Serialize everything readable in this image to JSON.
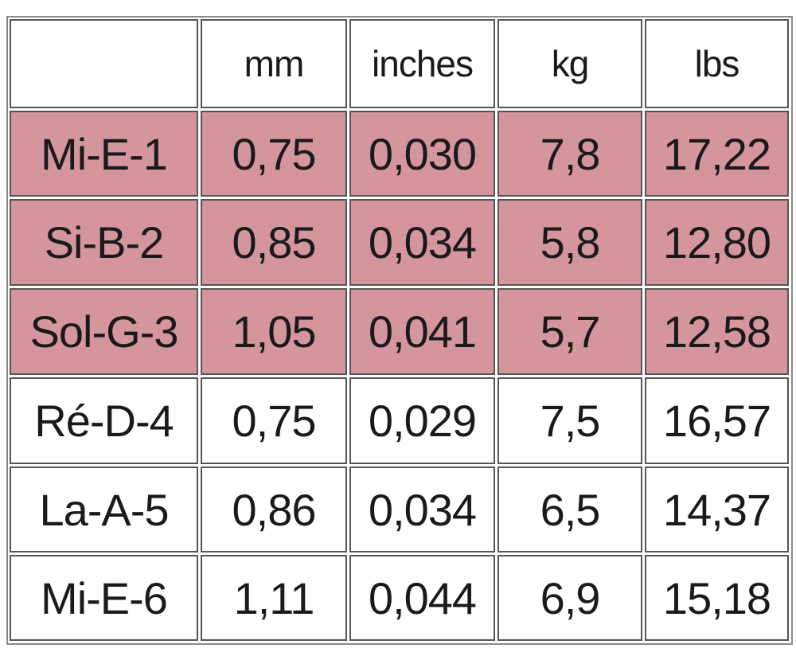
{
  "table": {
    "columns": [
      "mm",
      "inches",
      "kg",
      "lbs"
    ],
    "rows": [
      {
        "label": "Mi-E-1",
        "cells": [
          "0,75",
          "0,030",
          "7,8",
          "17,22"
        ]
      },
      {
        "label": "Si-B-2",
        "cells": [
          "0,85",
          "0,034",
          "5,8",
          "12,80"
        ]
      },
      {
        "label": "Sol-G-3",
        "cells": [
          "1,05",
          "0,041",
          "5,7",
          "12,58"
        ]
      },
      {
        "label": "Ré-D-4",
        "cells": [
          "0,75",
          "0,029",
          "7,5",
          "16,57"
        ]
      },
      {
        "label": "La-A-5",
        "cells": [
          "0,86",
          "0,034",
          "6,5",
          "14,37"
        ]
      },
      {
        "label": "Mi-E-6",
        "cells": [
          "1,11",
          "0,044",
          "6,9",
          "15,18"
        ]
      }
    ]
  }
}
